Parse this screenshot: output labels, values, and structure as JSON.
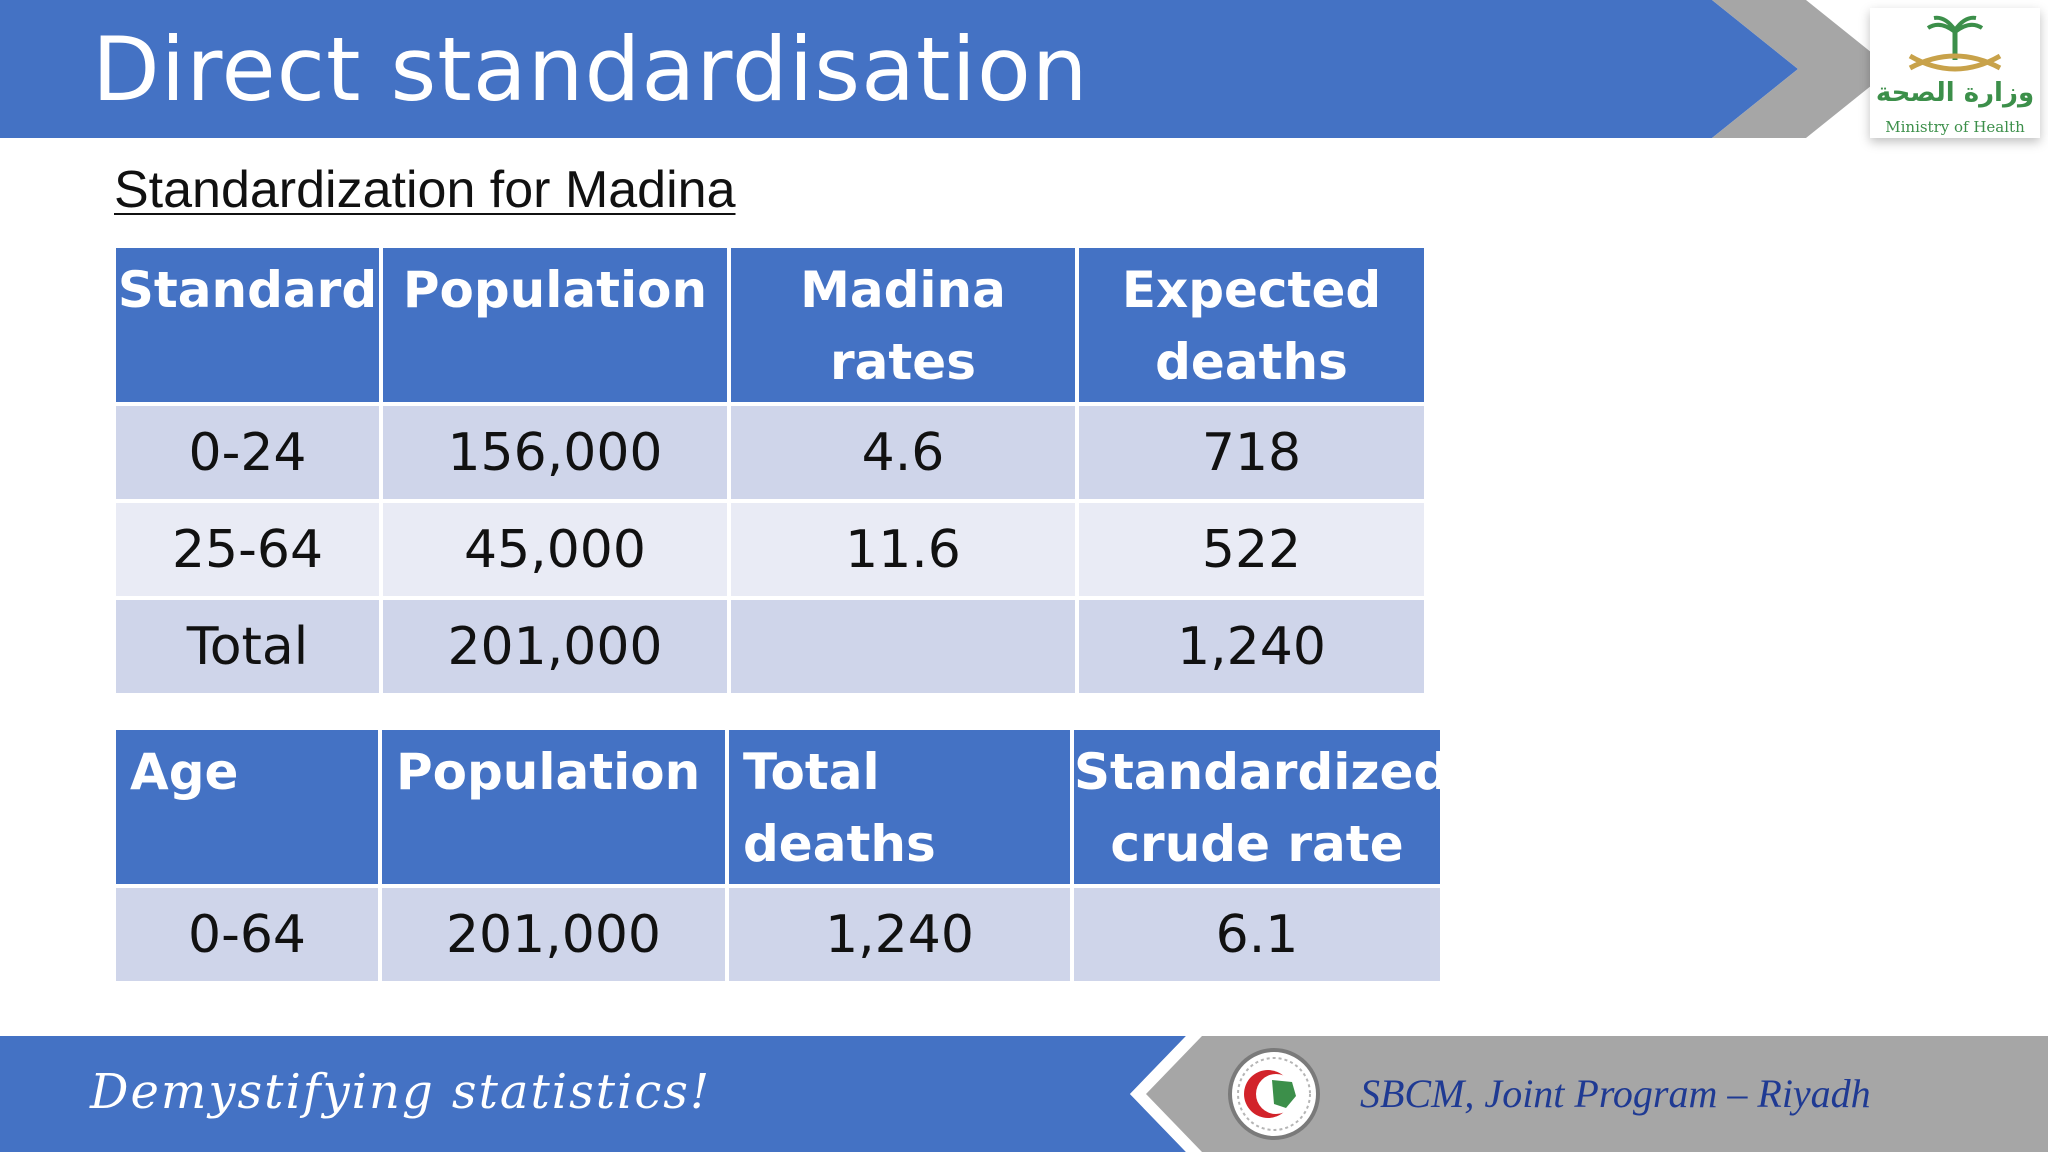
{
  "colors": {
    "banner_blue": "#4472c4",
    "banner_gray": "#a6a6a6",
    "row_dark": "#cfd5ea",
    "row_light": "#e9ebf5",
    "org_text": "#1f3a93"
  },
  "header": {
    "title": "Direct standardisation",
    "logo": {
      "arabic": "وزارة الصحة",
      "english": "Ministry of Health",
      "icon": "palm-swords-emblem-icon"
    }
  },
  "subtitle": "Standardization for Madina",
  "table1": {
    "headers": [
      [
        "Standard"
      ],
      [
        "Population"
      ],
      [
        "Madina",
        "rates"
      ],
      [
        "Expected",
        "deaths"
      ]
    ],
    "rows": [
      [
        "0-24",
        "156,000",
        "4.6",
        "718"
      ],
      [
        "25-64",
        "45,000",
        "11.6",
        "522"
      ],
      [
        "Total",
        "201,000",
        "",
        "1,240"
      ]
    ]
  },
  "table2": {
    "headers": [
      [
        "Age"
      ],
      [
        "Population"
      ],
      [
        "Total deaths"
      ],
      [
        "Standardized",
        "crude rate"
      ]
    ],
    "rows": [
      [
        "0-64",
        "201,000",
        "1,240",
        "6.1"
      ]
    ]
  },
  "footer": {
    "tagline": "Demystifying statistics!",
    "organization": "SBCM, Joint Program – Riyadh",
    "seal_icon": "crescent-map-seal-icon"
  }
}
